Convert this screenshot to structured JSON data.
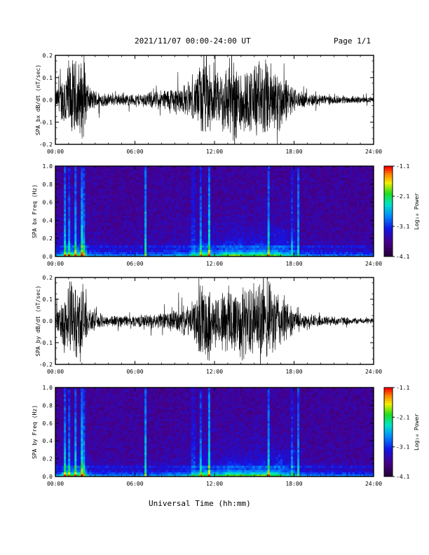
{
  "header": {
    "title": "2021/11/07  00:00-24:00 UT",
    "page": "Page 1/1"
  },
  "xaxis_title": "Universal Time (hh:mm)",
  "chart_data": [
    {
      "type": "line",
      "ylabel": "SPA bx dB/dt (nT/sec)",
      "xlim": [
        0,
        24
      ],
      "ylim": [
        -0.2,
        0.2
      ],
      "xticks": [
        "00:00",
        "06:00",
        "12:00",
        "18:00",
        "24:00"
      ],
      "yticks": [
        "0.2",
        "0.1",
        "0.0",
        "-0.1",
        "-0.2"
      ],
      "envelope": {
        "hours": [
          0,
          0.3,
          0.5,
          0.8,
          1.0,
          1.5,
          2.0,
          2.3,
          2.5,
          3.0,
          4.0,
          5.0,
          6.0,
          7.0,
          8.0,
          9.0,
          10.0,
          10.5,
          11.0,
          11.5,
          12.0,
          12.5,
          13.0,
          14.0,
          14.5,
          15.0,
          15.5,
          16.0,
          17.0,
          17.5,
          18.0,
          18.5,
          19.0,
          20.0,
          21.0,
          22.0,
          23.0,
          24.0
        ],
        "amplitude": [
          0.05,
          0.08,
          0.12,
          0.2,
          0.2,
          0.2,
          0.2,
          0.15,
          0.06,
          0.05,
          0.03,
          0.03,
          0.03,
          0.04,
          0.05,
          0.07,
          0.08,
          0.1,
          0.2,
          0.2,
          0.12,
          0.15,
          0.2,
          0.2,
          0.15,
          0.2,
          0.2,
          0.2,
          0.15,
          0.1,
          0.06,
          0.04,
          0.035,
          0.03,
          0.02,
          0.02,
          0.015,
          0.015
        ]
      }
    },
    {
      "type": "heatmap",
      "ylabel": "SPA bx Freq (Hz)",
      "xlim": [
        0,
        24
      ],
      "ylim": [
        0,
        1.0
      ],
      "xticks": [
        "00:00",
        "06:00",
        "12:00",
        "18:00",
        "24:00"
      ],
      "yticks": [
        "1.0",
        "0.8",
        "0.6",
        "0.4",
        "0.2",
        "0.0"
      ],
      "colorbar": {
        "label": "Log₁₀ Power",
        "ticks": [
          "-1.1",
          "-2.1",
          "-3.1",
          "-4.1"
        ],
        "range": [
          -4.1,
          -1.1
        ]
      }
    },
    {
      "type": "line",
      "ylabel": "SPA by dB/dt (nT/sec)",
      "xlim": [
        0,
        24
      ],
      "ylim": [
        -0.2,
        0.2
      ],
      "xticks": [
        "00:00",
        "06:00",
        "12:00",
        "18:00",
        "24:00"
      ],
      "yticks": [
        "0.2",
        "0.1",
        "0.0",
        "-0.1",
        "-0.2"
      ],
      "envelope": {
        "hours": [
          0,
          0.3,
          0.5,
          0.8,
          1.0,
          1.5,
          2.0,
          2.3,
          2.5,
          3.0,
          4.0,
          5.0,
          6.0,
          7.0,
          8.0,
          9.0,
          10.0,
          10.5,
          11.0,
          11.5,
          12.0,
          12.5,
          13.0,
          14.0,
          14.5,
          15.0,
          15.5,
          16.0,
          17.0,
          17.5,
          18.0,
          18.5,
          19.0,
          20.0,
          21.0,
          22.0,
          23.0,
          24.0
        ],
        "amplitude": [
          0.05,
          0.08,
          0.12,
          0.2,
          0.2,
          0.2,
          0.2,
          0.15,
          0.05,
          0.045,
          0.03,
          0.03,
          0.03,
          0.035,
          0.04,
          0.06,
          0.08,
          0.1,
          0.2,
          0.2,
          0.12,
          0.15,
          0.2,
          0.2,
          0.16,
          0.2,
          0.2,
          0.2,
          0.15,
          0.1,
          0.06,
          0.04,
          0.035,
          0.03,
          0.025,
          0.02,
          0.015,
          0.015
        ]
      }
    },
    {
      "type": "heatmap",
      "ylabel": "SPA by Freq (Hz)",
      "xlim": [
        0,
        24
      ],
      "ylim": [
        0,
        1.0
      ],
      "xticks": [
        "00:00",
        "06:00",
        "12:00",
        "18:00",
        "24:00"
      ],
      "yticks": [
        "1.0",
        "0.8",
        "0.6",
        "0.4",
        "0.2",
        "0.0"
      ],
      "colorbar": {
        "label": "Log₁₀ Power",
        "ticks": [
          "-1.1",
          "-2.1",
          "-3.1",
          "-4.1"
        ],
        "range": [
          -4.1,
          -1.1
        ]
      }
    }
  ],
  "spectrogram_features": {
    "bright_bursts_hours": [
      0.7,
      1.0,
      1.5,
      2.0,
      2.2,
      6.8,
      10.4,
      11.0,
      11.6,
      16.1,
      17.9,
      18.3
    ],
    "horizontal_bands_hz": [
      0.12,
      0.2,
      0.3,
      0.6,
      0.65
    ]
  }
}
